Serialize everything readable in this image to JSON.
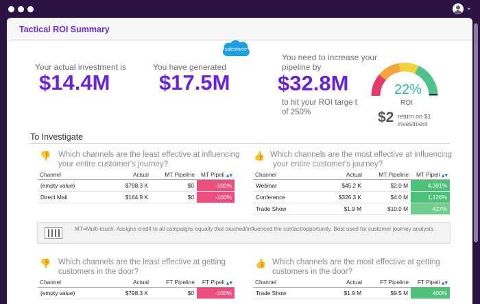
{
  "colors": {
    "accent": "#6a24d6",
    "negative": "#ea4f7f",
    "positive": "#4ec17a",
    "background": "#2b1242"
  },
  "window": {
    "user_icon": "user-avatar-icon",
    "menu_icon": "chevron-down-icon"
  },
  "panel": {
    "title": "Tactical ROI Summary"
  },
  "kpis": {
    "investment_label": "Your actual investment is",
    "investment_value": "$14.4M",
    "generated_label": "You have generated",
    "generated_value": "$17.5M",
    "salesforce_logo": "salesforce",
    "increase_label_1": "You need to increase your",
    "increase_label_2": "pipeline by",
    "increase_value": "$32.8M",
    "target_label_1": "to hit your ROI targe t",
    "target_label_2": "of 250%"
  },
  "gauge": {
    "percent": "22%",
    "percent_value": 22,
    "label": "ROI",
    "return_value": "$2",
    "return_label_1": "return on $1",
    "return_label_2": "investment"
  },
  "investigate": {
    "title": "To Investigate",
    "least_effective_journey": {
      "question_1": "Which channels are the least effective at influencing",
      "question_2": "your entire customer's journey?",
      "icon": "thumbs-down-icon",
      "headers": [
        "Channel",
        "Actual",
        "MT Pipeline",
        "MT Pipeli"
      ],
      "rows": [
        [
          "(empty value)",
          "$798.3 K",
          "$0",
          "-100%"
        ],
        [
          "Direct Mail",
          "$164.9 K",
          "$0",
          "-100%"
        ]
      ]
    },
    "most_effective_journey": {
      "question_1": "Which channels are the most effective at influencing",
      "question_2": "your entire customer's journey?",
      "icon": "thumbs-up-icon",
      "headers": [
        "Channel",
        "Actual",
        "MT Pipeline",
        "MT Pipeli"
      ],
      "rows": [
        [
          "Webinar",
          "$45.2 K",
          "$2.0 M",
          "4,391%"
        ],
        [
          "Conference",
          "$326.3 K",
          "$4.0 M",
          "1,126%"
        ],
        [
          "Trade Show",
          "$1.9 M",
          "$10.0 M",
          "427%"
        ]
      ]
    },
    "note": "MT=Multi-touch. Assigns credit to all campaigns equally that touched/influenced the contact/opportunity. Best used for customer journey analysis.",
    "least_effective_door": {
      "question_1": "Which channels are the least effective at getting",
      "question_2": "customers in the door?",
      "icon": "thumbs-down-icon",
      "headers": [
        "Channel",
        "Actual",
        "FT Pipeline",
        "FT Pipeli"
      ],
      "rows": [
        [
          "(empty value)",
          "$798.3 K",
          "$0",
          "-100%"
        ]
      ]
    },
    "most_effective_door": {
      "question_1": "Which channels are the most effective at getting",
      "question_2": "customers in the door?",
      "icon": "thumbs-up-icon",
      "headers": [
        "Channel",
        "Actual",
        "FT Pipeline",
        "FT Pipeli"
      ],
      "rows": [
        [
          "Trade Show",
          "$1.9 M",
          "$9.5 M",
          "400%"
        ]
      ]
    }
  }
}
